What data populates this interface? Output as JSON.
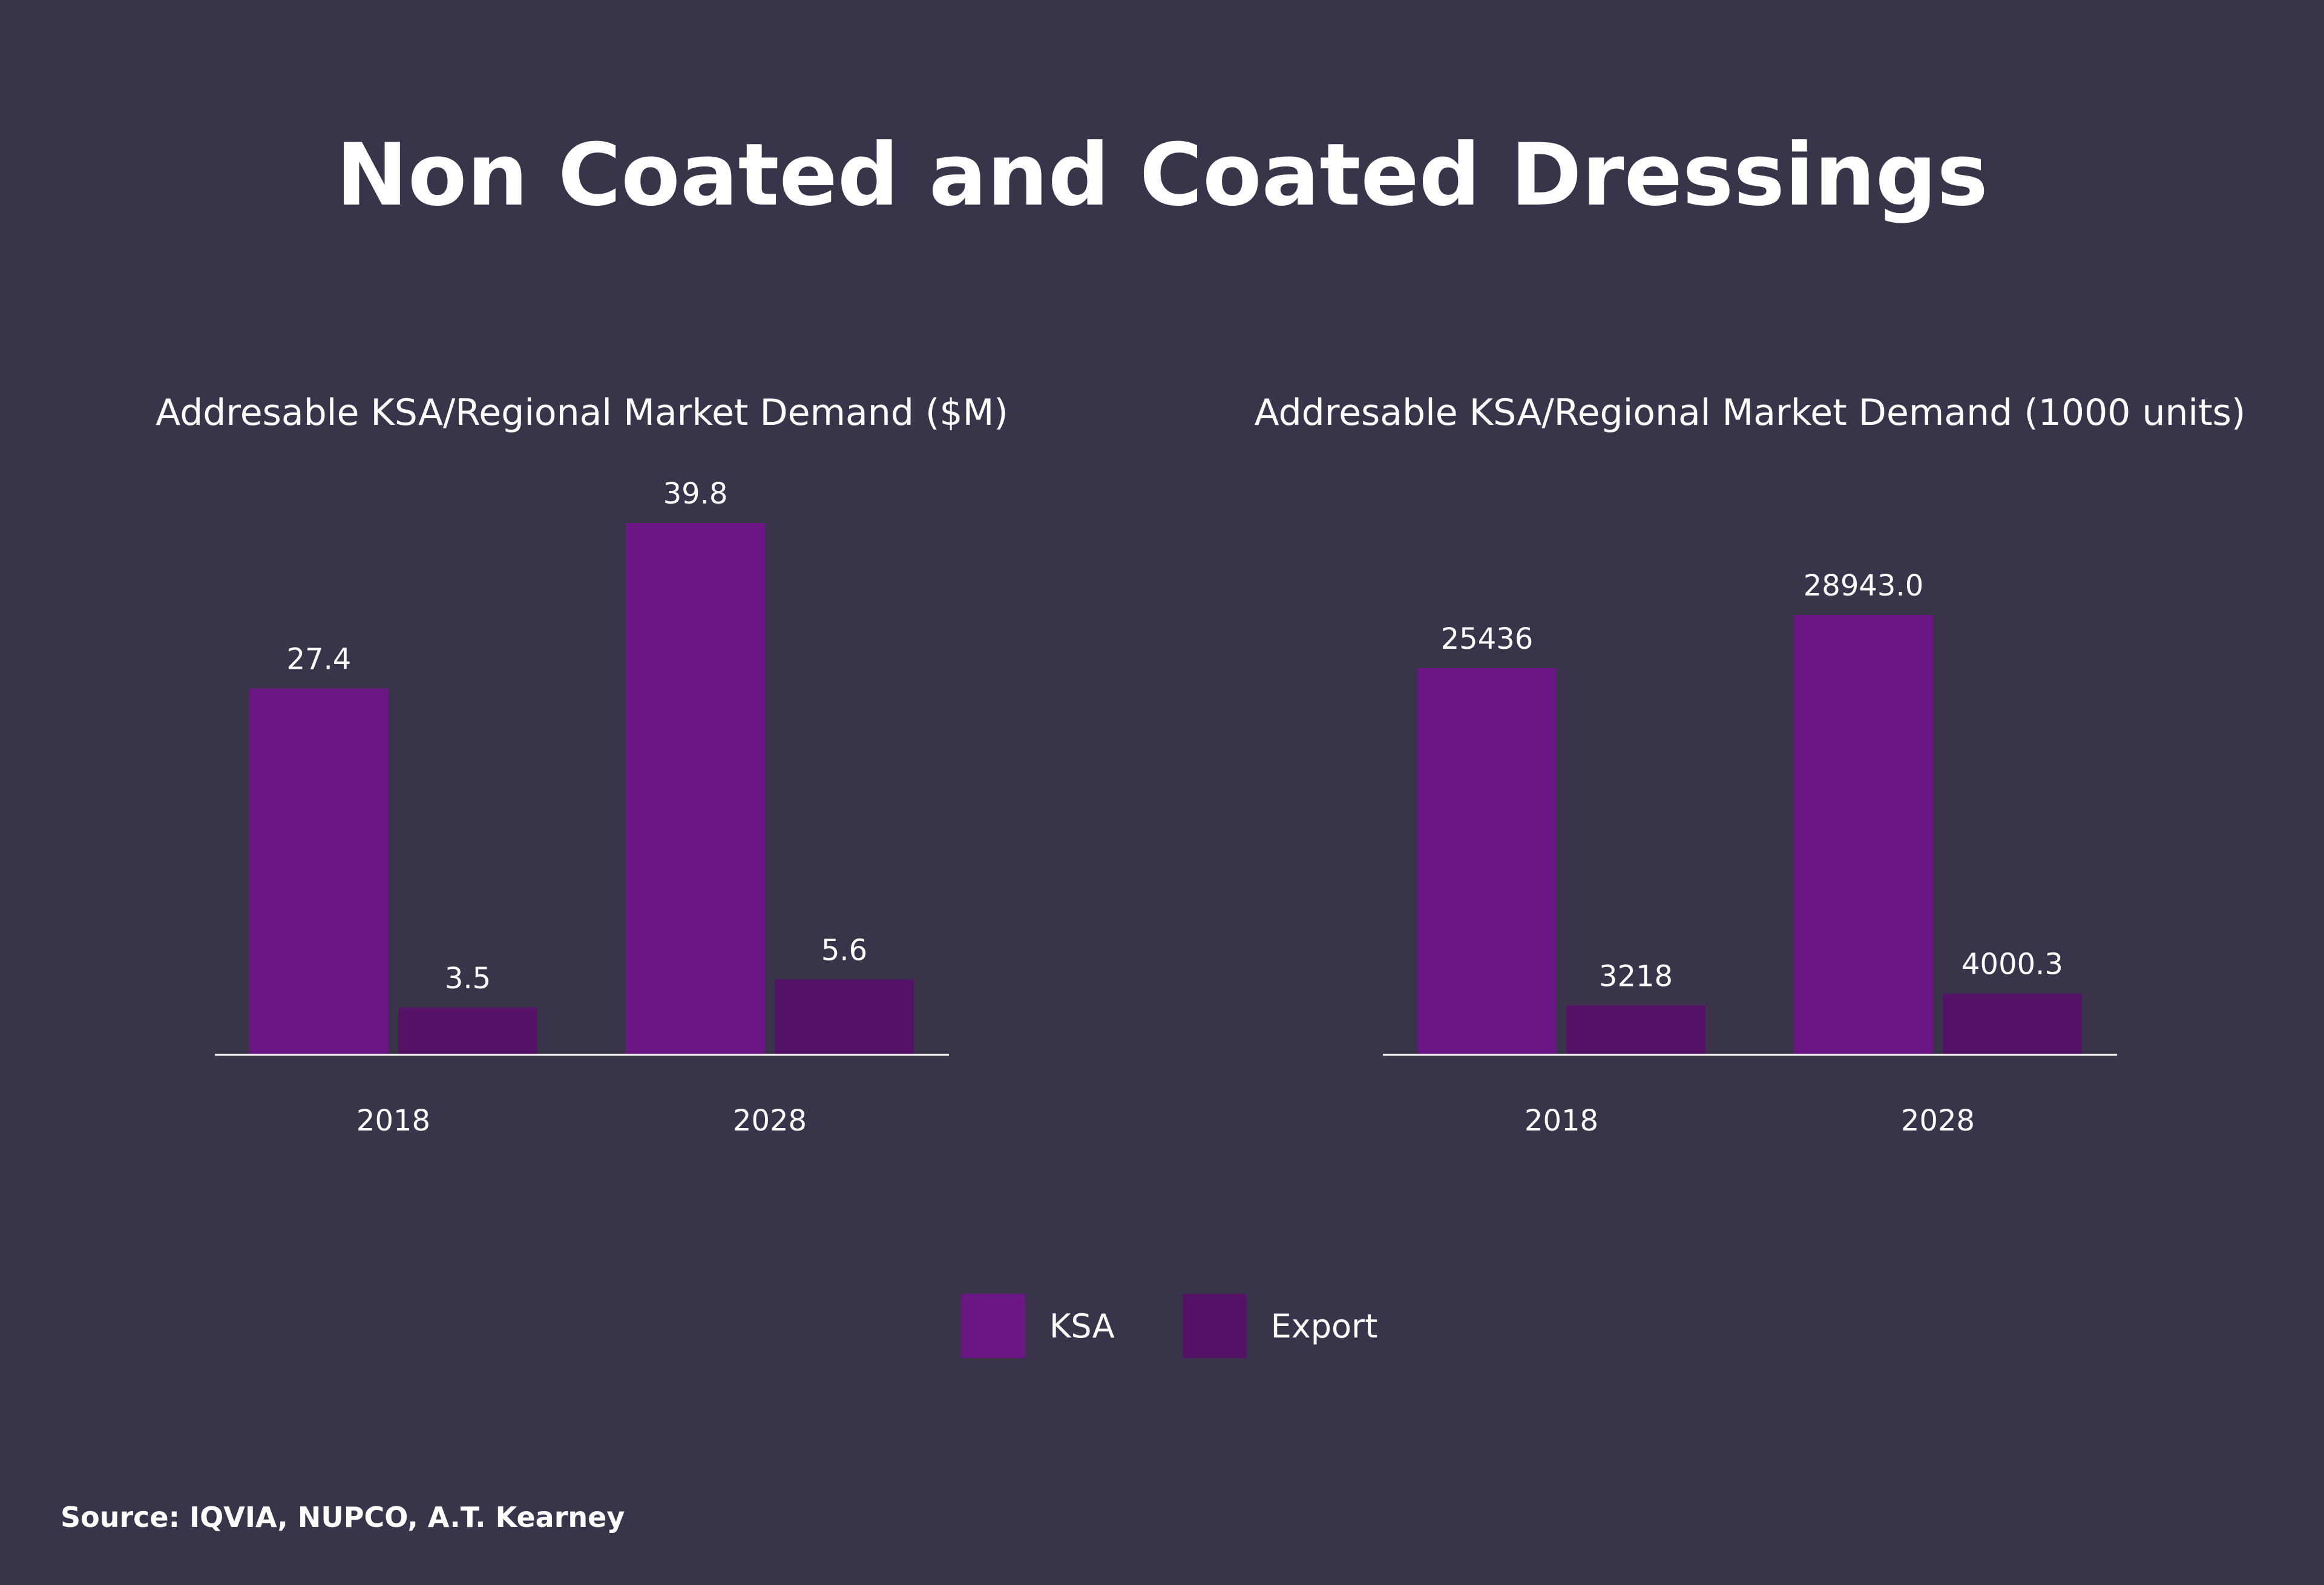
{
  "title": "Non Coated and Coated Dressings",
  "source": "Source: IQVIA, NUPCO, A.T. Kearney",
  "colors": {
    "background": "#39344a",
    "ksa": "#6a1784",
    "export": "#551368",
    "text": "#ffffff"
  },
  "legend": [
    {
      "label": "KSA",
      "color": "#6a1784"
    },
    {
      "label": "Export",
      "color": "#551368"
    }
  ],
  "chart_data": [
    {
      "type": "bar",
      "title": "Addresable KSA/Regional Market Demand ($M)",
      "categories": [
        "2018",
        "2028"
      ],
      "series": [
        {
          "name": "KSA",
          "values": [
            27.4,
            39.8
          ],
          "labels": [
            "27.4",
            "39.8"
          ]
        },
        {
          "name": "Export",
          "values": [
            3.5,
            5.6
          ],
          "labels": [
            "3.5",
            "5.6"
          ]
        }
      ],
      "ylim": [
        0,
        39.8
      ],
      "grid": false
    },
    {
      "type": "bar",
      "title": "Addresable KSA/Regional Market Demand (1000 units)",
      "categories": [
        "2018",
        "2028"
      ],
      "series": [
        {
          "name": "KSA",
          "values": [
            25436,
            28943.0
          ],
          "labels": [
            "25436",
            "28943.0"
          ]
        },
        {
          "name": "Export",
          "values": [
            3218,
            4000.3
          ],
          "labels": [
            "3218",
            "4000.3"
          ]
        }
      ],
      "ylim": [
        0,
        35000
      ],
      "grid": false
    }
  ]
}
